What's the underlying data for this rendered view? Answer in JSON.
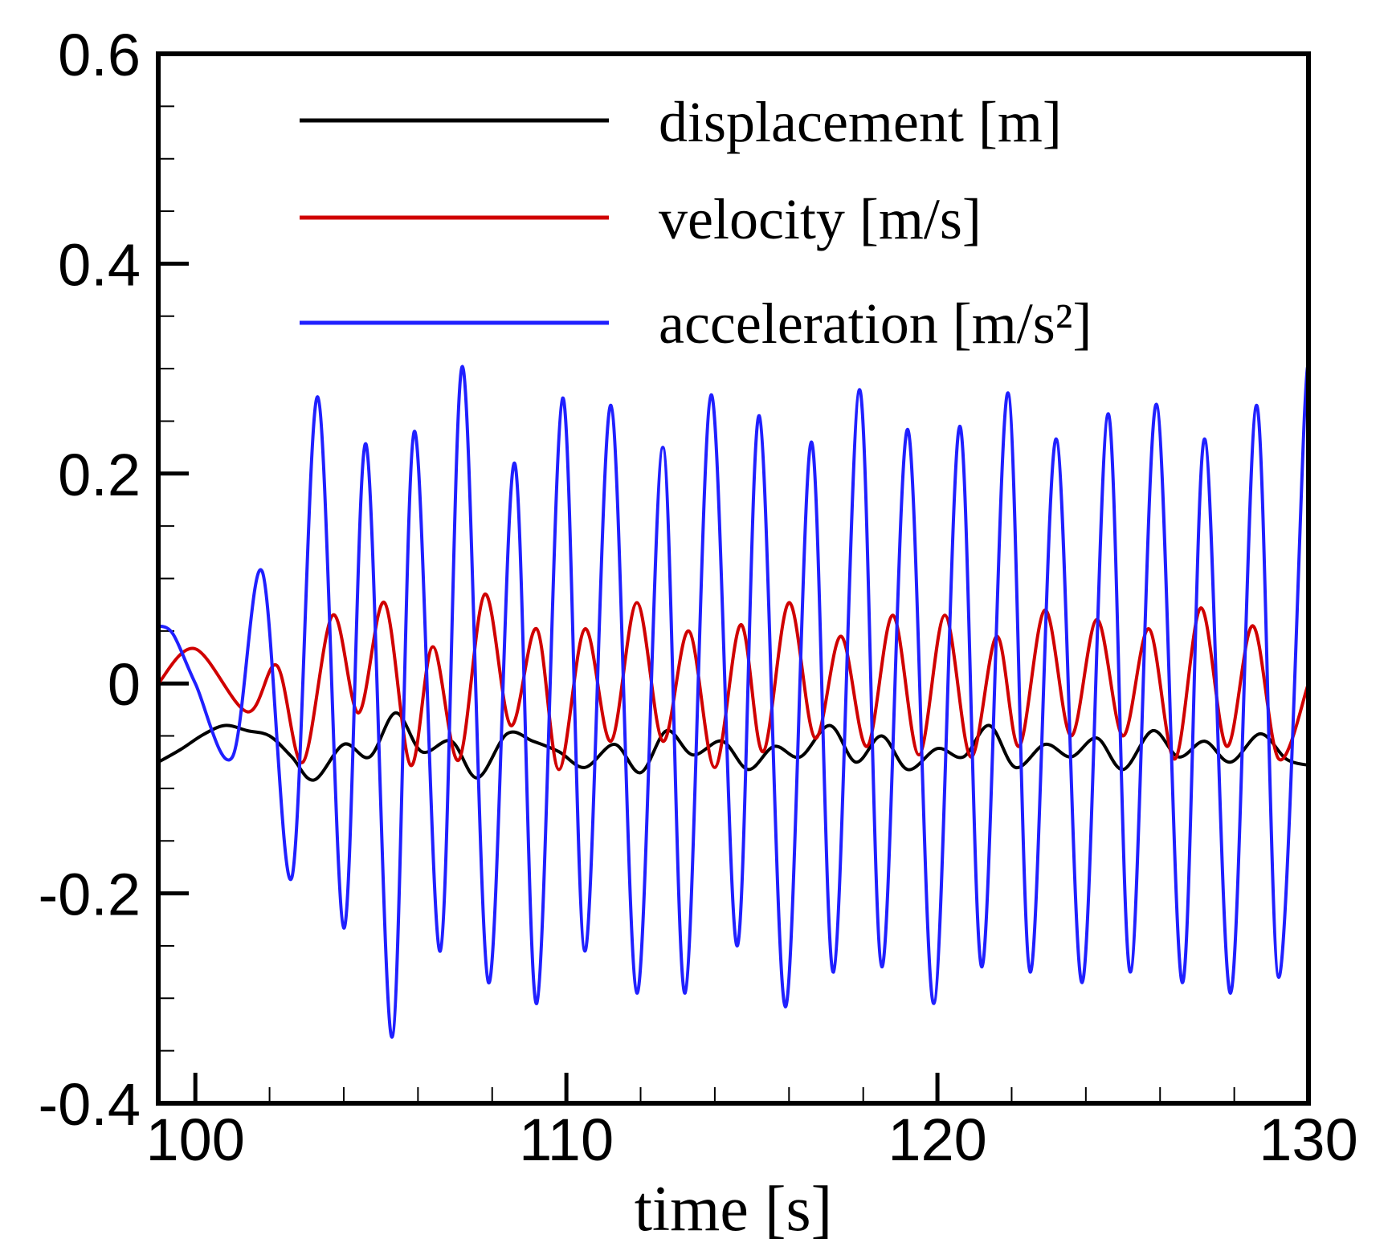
{
  "chart_data": {
    "type": "line",
    "title": "",
    "xlabel": "time [s]",
    "ylabel": "",
    "xlim": [
      99,
      130
    ],
    "ylim": [
      -0.4,
      0.6
    ],
    "x_major_ticks": [
      100,
      110,
      120,
      130
    ],
    "x_tick_labels": [
      "100",
      "110",
      "120",
      "130"
    ],
    "x_minor_step": 2,
    "y_major_ticks": [
      -0.4,
      -0.2,
      0,
      0.2,
      0.4,
      0.6
    ],
    "y_tick_labels": [
      "-0.4",
      "-0.2",
      "0",
      "0.2",
      "0.4",
      "0.6"
    ],
    "y_minor_step": 0.05,
    "grid": false,
    "legend_position": "top-right",
    "series": [
      {
        "name": "displacement [m]",
        "color": "#000000",
        "x": [
          99.0,
          99.6,
          100.2,
          100.8,
          101.4,
          102.0,
          102.6,
          103.2,
          104.0,
          104.7,
          105.4,
          106.1,
          106.9,
          107.6,
          108.4,
          109.1,
          109.8,
          110.5,
          111.3,
          112.0,
          112.7,
          113.4,
          114.2,
          114.9,
          115.6,
          116.3,
          117.1,
          117.8,
          118.5,
          119.2,
          120.0,
          120.7,
          121.4,
          122.1,
          122.9,
          123.6,
          124.3,
          125.0,
          125.8,
          126.5,
          127.2,
          127.9,
          128.7,
          129.4,
          130.0
        ],
        "y": [
          -0.075,
          -0.063,
          -0.049,
          -0.04,
          -0.045,
          -0.05,
          -0.07,
          -0.092,
          -0.058,
          -0.07,
          -0.028,
          -0.065,
          -0.055,
          -0.09,
          -0.048,
          -0.055,
          -0.065,
          -0.08,
          -0.058,
          -0.085,
          -0.045,
          -0.068,
          -0.055,
          -0.082,
          -0.06,
          -0.07,
          -0.04,
          -0.075,
          -0.05,
          -0.082,
          -0.062,
          -0.07,
          -0.04,
          -0.08,
          -0.058,
          -0.07,
          -0.052,
          -0.082,
          -0.045,
          -0.07,
          -0.055,
          -0.075,
          -0.048,
          -0.072,
          -0.078
        ]
      },
      {
        "name": "velocity [m/s]",
        "color": "#d00000",
        "x": [
          99.0,
          100.0,
          101.4,
          102.2,
          102.9,
          103.7,
          104.4,
          105.1,
          105.8,
          106.4,
          107.1,
          107.8,
          108.5,
          109.2,
          109.8,
          110.5,
          111.2,
          111.9,
          112.6,
          113.3,
          114.0,
          114.7,
          115.3,
          116.0,
          116.7,
          117.4,
          118.1,
          118.8,
          119.5,
          120.2,
          120.9,
          121.6,
          122.2,
          122.9,
          123.6,
          124.3,
          125.0,
          125.7,
          126.4,
          127.1,
          127.8,
          128.5,
          129.2,
          130.0
        ],
        "y": [
          0.0,
          0.033,
          -0.027,
          0.017,
          -0.075,
          0.065,
          -0.028,
          0.077,
          -0.078,
          0.035,
          -0.073,
          0.085,
          -0.04,
          0.052,
          -0.082,
          0.052,
          -0.055,
          0.077,
          -0.055,
          0.05,
          -0.08,
          0.056,
          -0.065,
          0.077,
          -0.052,
          0.045,
          -0.06,
          0.065,
          -0.068,
          0.065,
          -0.07,
          0.045,
          -0.06,
          0.07,
          -0.05,
          0.061,
          -0.05,
          0.052,
          -0.072,
          0.072,
          -0.06,
          0.055,
          -0.072,
          0.0
        ]
      },
      {
        "name": "acceleration [m/s²]",
        "color": "#2020ff",
        "x": [
          99.0,
          99.4,
          100.0,
          101.0,
          101.8,
          102.6,
          103.3,
          104.0,
          104.6,
          105.3,
          105.9,
          106.6,
          107.2,
          107.9,
          108.6,
          109.2,
          109.9,
          110.5,
          111.2,
          111.9,
          112.6,
          113.2,
          113.9,
          114.6,
          115.2,
          115.9,
          116.6,
          117.2,
          117.9,
          118.5,
          119.2,
          119.9,
          120.6,
          121.2,
          121.9,
          122.5,
          123.2,
          123.9,
          124.6,
          125.2,
          125.9,
          126.6,
          127.2,
          127.9,
          128.6,
          129.2,
          129.9,
          130.0
        ],
        "y": [
          0.055,
          0.047,
          0.0,
          -0.07,
          0.107,
          -0.185,
          0.273,
          -0.233,
          0.228,
          -0.337,
          0.24,
          -0.255,
          0.302,
          -0.285,
          0.21,
          -0.305,
          0.272,
          -0.255,
          0.265,
          -0.295,
          0.225,
          -0.295,
          0.275,
          -0.25,
          0.255,
          -0.308,
          0.23,
          -0.275,
          0.28,
          -0.27,
          0.242,
          -0.305,
          0.245,
          -0.27,
          0.277,
          -0.275,
          0.233,
          -0.285,
          0.257,
          -0.275,
          0.266,
          -0.285,
          0.233,
          -0.295,
          0.265,
          -0.28,
          0.262,
          0.262
        ]
      }
    ],
    "legend_entries": [
      "displacement [m]",
      "velocity [m/s]",
      "acceleration [m/s²]"
    ]
  }
}
